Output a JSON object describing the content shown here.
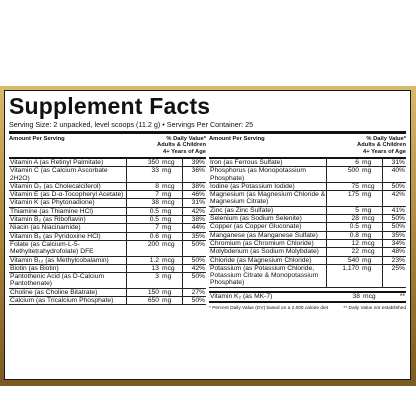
{
  "title": "Supplement Facts",
  "serving": "Serving Size: 2 unpacked, level scoops (11.2 g) • Servings Per Container: 25",
  "header": {
    "amount": "Amount Per Serving",
    "dv_line1": "% Daily Value*",
    "dv_line2": "Adults & Children",
    "dv_line3": "4+ Years of Age"
  },
  "left_rows": [
    {
      "name": "Vitamin A (as Retinyl Palmitate)",
      "amount": "350",
      "unit": "mcg",
      "dv": "39%"
    },
    {
      "name": "Vitamin C (as Calcium Ascorbate 2H2O)",
      "amount": "33",
      "unit": "mg",
      "dv": "36%"
    },
    {
      "name": "Vitamin D₃ (as Cholecalciferol)",
      "amount": "8",
      "unit": "mcg",
      "dv": "38%"
    },
    {
      "name": "Vitamin E (as D-α-Tocopheryl Acetate)",
      "amount": "7",
      "unit": "mg",
      "dv": "46%"
    },
    {
      "name": "Vitamin K (as Phytonadione)",
      "amount": "38",
      "unit": "mcg",
      "dv": "31%"
    },
    {
      "name": "Thiamine (as Thiamine HCl)",
      "amount": "0.5",
      "unit": "mg",
      "dv": "42%"
    },
    {
      "name": "Vitamin B₂ (as Riboflavin)",
      "amount": "0.5",
      "unit": "mg",
      "dv": "38%"
    },
    {
      "name": "Niacin (as Niacinamide)",
      "amount": "7",
      "unit": "mg",
      "dv": "44%"
    },
    {
      "name": "Vitamin B₆ (as Pyridoxine HCl)",
      "amount": "0.6",
      "unit": "mg",
      "dv": "35%"
    },
    {
      "name": "Folate (as Calcium-L-5-Methyltetrahydrofolate) DFE",
      "amount": "200",
      "unit": "mcg",
      "dv": "50%"
    },
    {
      "name": "Vitamin B₁₂ (as Methylcobalamin)",
      "amount": "1.2",
      "unit": "mcg",
      "dv": "50%"
    },
    {
      "name": "Biotin (as Biotin)",
      "amount": "13",
      "unit": "mcg",
      "dv": "42%"
    },
    {
      "name": "Pantothenic Acid (as D-Calcium Pantothenate)",
      "amount": "3",
      "unit": "mg",
      "dv": "50%"
    },
    {
      "name": "Choline (as Choline Bitatrate)",
      "amount": "150",
      "unit": "mg",
      "dv": "27%"
    },
    {
      "name": "Calcium (as Tricalcium Phosphate)",
      "amount": "650",
      "unit": "mg",
      "dv": "50%"
    }
  ],
  "right_rows": [
    {
      "name": "Iron (as Ferrous Sulfate)",
      "amount": "6",
      "unit": "mg",
      "dv": "31%"
    },
    {
      "name": "Phosphorus (as Monopotassium Phosphate)",
      "amount": "500",
      "unit": "mg",
      "dv": "40%"
    },
    {
      "name": "Iodine (as Potassium Iodide)",
      "amount": "75",
      "unit": "mcg",
      "dv": "50%"
    },
    {
      "name": "Magnesium (as Magnesium Chloride & Magnesium Citrate)",
      "amount": "175",
      "unit": "mg",
      "dv": "42%"
    },
    {
      "name": "Zinc (as Zinc Sulfate)",
      "amount": "5",
      "unit": "mg",
      "dv": "41%"
    },
    {
      "name": "Selenium (as Sodium Selenite)",
      "amount": "28",
      "unit": "mcg",
      "dv": "50%"
    },
    {
      "name": "Copper (as Copper Gluconate)",
      "amount": "0.5",
      "unit": "mg",
      "dv": "50%"
    },
    {
      "name": "Manganese (as Manganese Sulfate)",
      "amount": "0.8",
      "unit": "mg",
      "dv": "35%"
    },
    {
      "name": "Chromium (as Chromium Chloride)",
      "amount": "12",
      "unit": "mcg",
      "dv": "34%"
    },
    {
      "name": "Molybdenum (as Sodium Molybdate)",
      "amount": "22",
      "unit": "mcg",
      "dv": "48%"
    },
    {
      "name": "Chloride (as Magnesium Chloride)",
      "amount": "540",
      "unit": "mg",
      "dv": "23%"
    },
    {
      "name": "Potassium (as Potassium Chloride, Potassium Citrate & Monopotassium Phosphate)",
      "amount": "1,170",
      "unit": "mg",
      "dv": "25%"
    }
  ],
  "vitamin_k2": {
    "name": "Vitamin K₂ (as MK-7)",
    "amount": "38",
    "unit": "mcg",
    "dv": "**"
  },
  "footnote_left": "* Percent Daily Value (DV) based on a 2,000 calorie diet",
  "footnote_right": "** Daily Value not established"
}
